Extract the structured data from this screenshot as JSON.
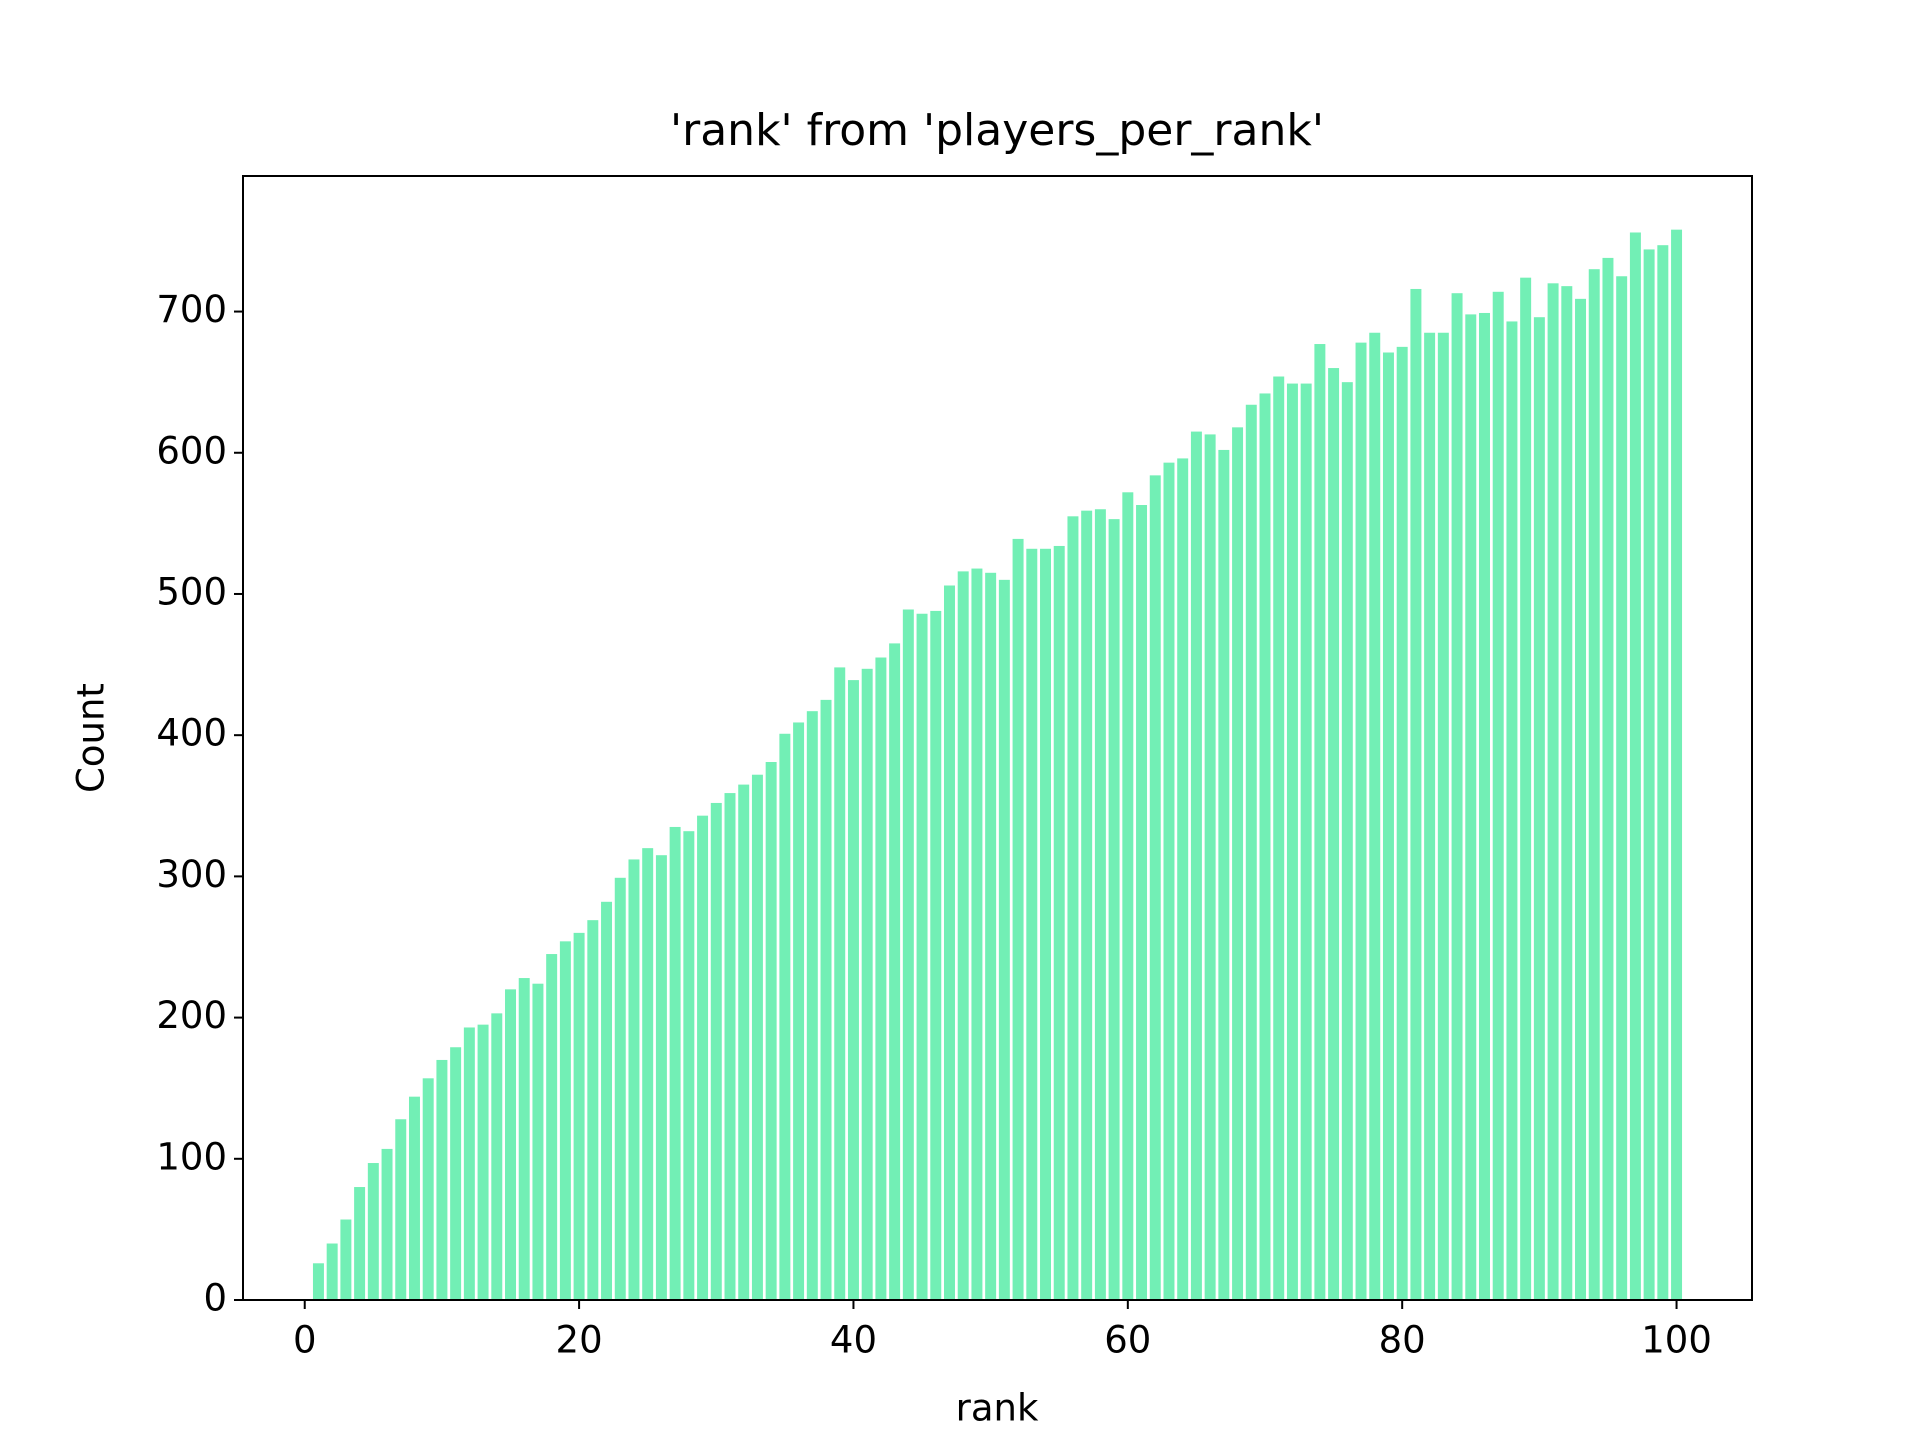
{
  "chart_data": {
    "type": "bar",
    "title": "'rank' from 'players_per_rank'",
    "xlabel": "rank",
    "ylabel": "Count",
    "color": "#72efb5",
    "x": [
      1,
      2,
      3,
      4,
      5,
      6,
      7,
      8,
      9,
      10,
      11,
      12,
      13,
      14,
      15,
      16,
      17,
      18,
      19,
      20,
      21,
      22,
      23,
      24,
      25,
      26,
      27,
      28,
      29,
      30,
      31,
      32,
      33,
      34,
      35,
      36,
      37,
      38,
      39,
      40,
      41,
      42,
      43,
      44,
      45,
      46,
      47,
      48,
      49,
      50,
      51,
      52,
      53,
      54,
      55,
      56,
      57,
      58,
      59,
      60,
      61,
      62,
      63,
      64,
      65,
      66,
      67,
      68,
      69,
      70,
      71,
      72,
      73,
      74,
      75,
      76,
      77,
      78,
      79,
      80,
      81,
      82,
      83,
      84,
      85,
      86,
      87,
      88,
      89,
      90,
      91,
      92,
      93,
      94,
      95,
      96,
      97,
      98,
      99,
      100
    ],
    "values": [
      26,
      40,
      57,
      80,
      97,
      107,
      128,
      144,
      157,
      170,
      179,
      193,
      195,
      203,
      220,
      228,
      224,
      245,
      254,
      260,
      269,
      282,
      299,
      312,
      320,
      315,
      335,
      332,
      343,
      352,
      359,
      365,
      372,
      381,
      401,
      409,
      417,
      425,
      448,
      439,
      447,
      455,
      465,
      489,
      486,
      488,
      506,
      516,
      518,
      515,
      510,
      539,
      532,
      532,
      534,
      555,
      559,
      560,
      553,
      572,
      563,
      584,
      593,
      596,
      615,
      613,
      602,
      618,
      634,
      642,
      654,
      649,
      649,
      677,
      660,
      650,
      678,
      685,
      671,
      675,
      716,
      685,
      685,
      713,
      698,
      699,
      714,
      693,
      724,
      696,
      720,
      718,
      709,
      730,
      738,
      725,
      756,
      744,
      747,
      758
    ],
    "xlim": [
      -4.5,
      105.5
    ],
    "ylim": [
      0,
      796
    ],
    "xticks": [
      0,
      20,
      40,
      60,
      80,
      100
    ],
    "yticks": [
      0,
      100,
      200,
      300,
      400,
      500,
      600,
      700
    ]
  }
}
